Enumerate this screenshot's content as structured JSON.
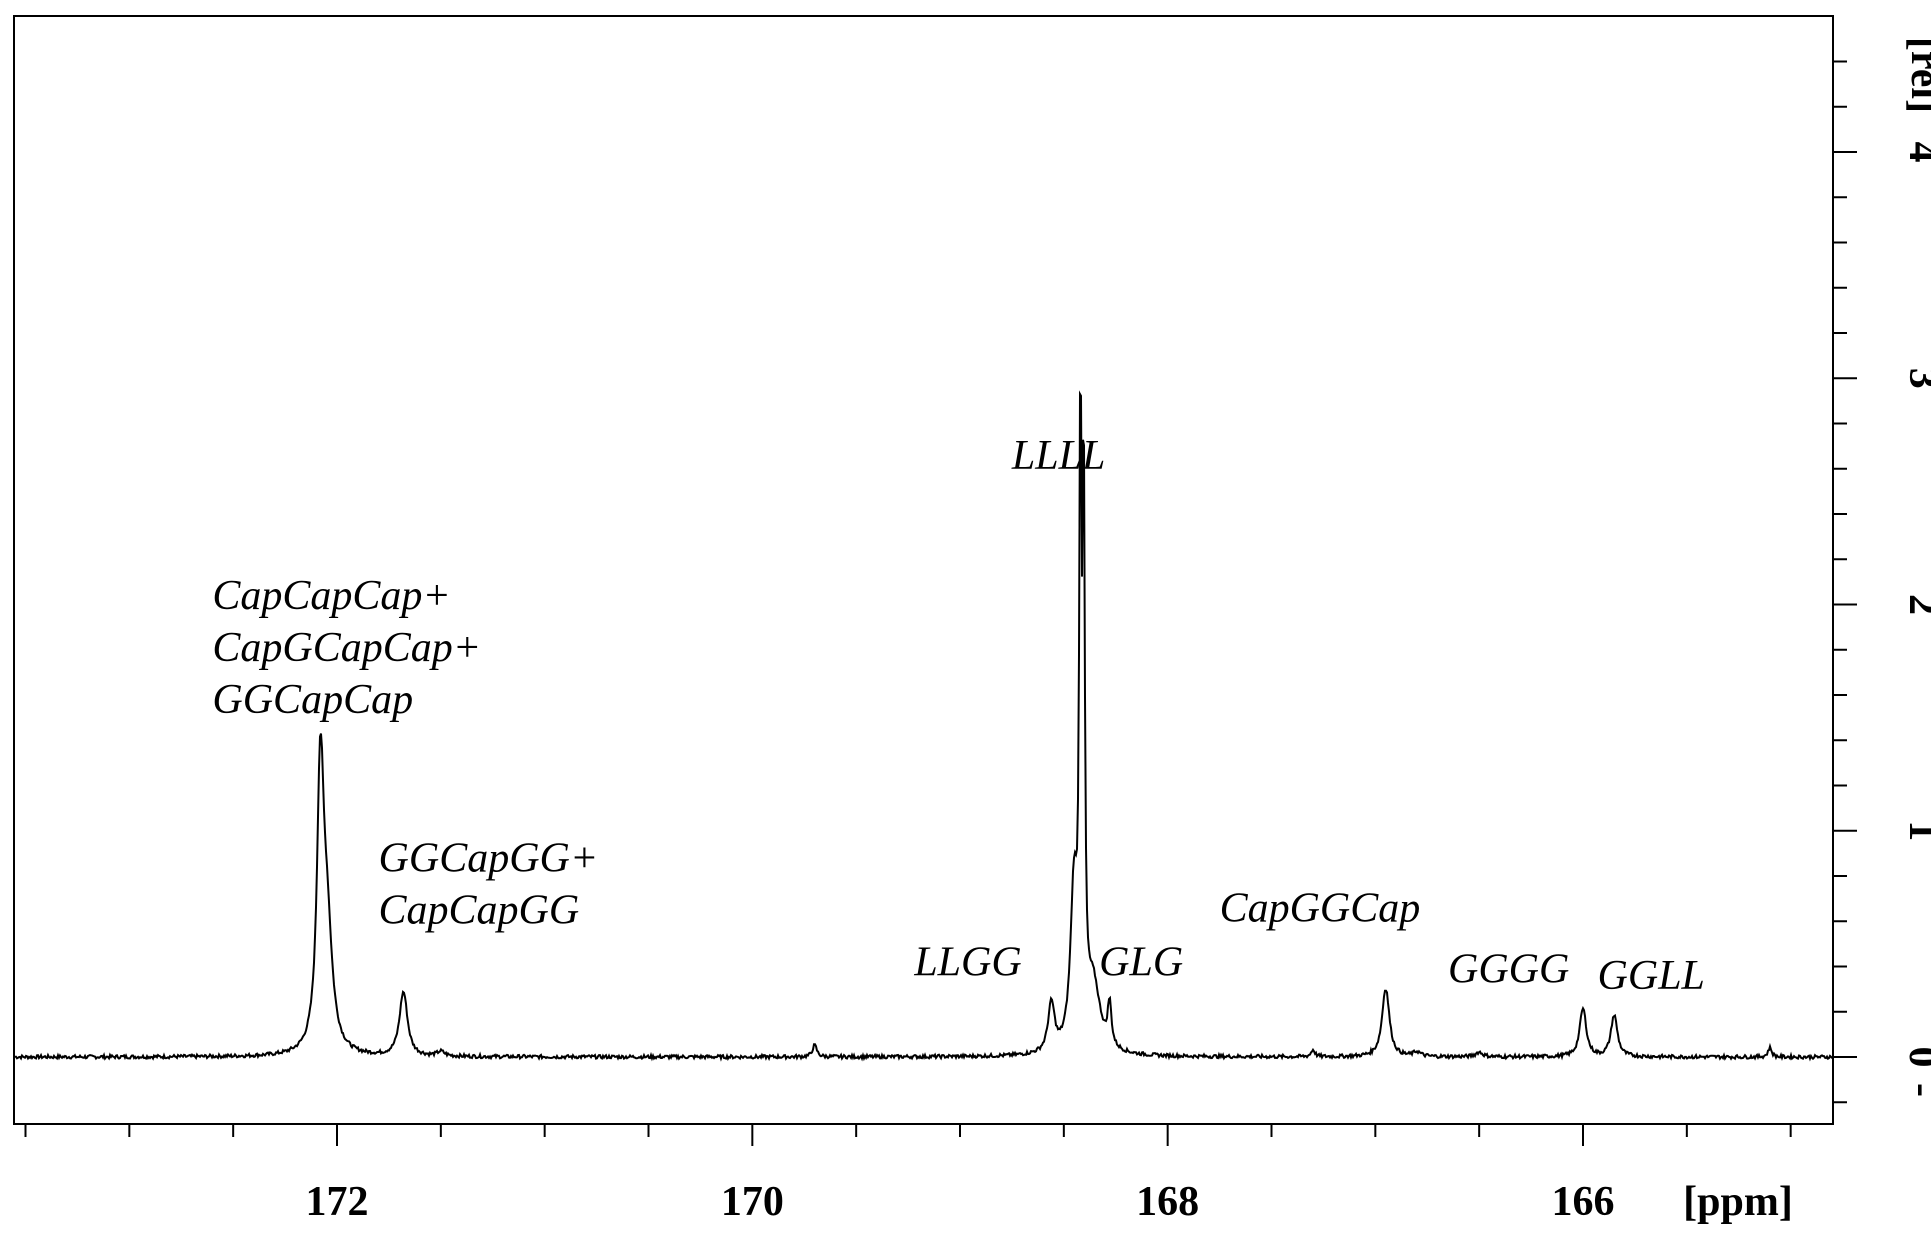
{
  "chart_data": {
    "type": "line",
    "title": "",
    "xlabel": "[ppm]",
    "ylabel": "[rel]",
    "xlim": [
      174.1,
      164.9
    ],
    "ylim": [
      -0.3,
      4.4
    ],
    "x_reversed": true,
    "y_axis_side": "right",
    "grid": false,
    "x_ticks": [
      {
        "value": 172,
        "label": "172"
      },
      {
        "value": 170,
        "label": "170"
      },
      {
        "value": 168,
        "label": "168"
      },
      {
        "value": 166,
        "label": "166"
      }
    ],
    "y_ticks": [
      {
        "value": 0,
        "label": "0"
      },
      {
        "value": 1,
        "label": "1"
      },
      {
        "value": 2,
        "label": "2"
      },
      {
        "value": 3,
        "label": "3"
      },
      {
        "value": 4,
        "label": "4"
      }
    ],
    "y_minus_label": "-",
    "series": [
      {
        "peaks": [
          {
            "center": 172.08,
            "height": 1.15,
            "width": 0.018
          },
          {
            "center": 172.05,
            "height": 0.55,
            "width": 0.03
          },
          {
            "center": 171.68,
            "height": 0.28,
            "width": 0.022
          },
          {
            "center": 171.5,
            "height": 0.02,
            "width": 0.02
          },
          {
            "center": 169.7,
            "height": 0.05,
            "width": 0.012
          },
          {
            "center": 168.56,
            "height": 0.21,
            "width": 0.018
          },
          {
            "center": 168.45,
            "height": 0.7,
            "width": 0.02
          },
          {
            "center": 168.42,
            "height": 2.4,
            "width": 0.006
          },
          {
            "center": 168.405,
            "height": 2.2,
            "width": 0.006
          },
          {
            "center": 168.36,
            "height": 0.3,
            "width": 0.04
          },
          {
            "center": 168.28,
            "height": 0.18,
            "width": 0.01
          },
          {
            "center": 167.3,
            "height": 0.03,
            "width": 0.01
          },
          {
            "center": 166.95,
            "height": 0.3,
            "width": 0.02
          },
          {
            "center": 166.8,
            "height": 0.02,
            "width": 0.02
          },
          {
            "center": 166.5,
            "height": 0.02,
            "width": 0.02
          },
          {
            "center": 166.0,
            "height": 0.21,
            "width": 0.018
          },
          {
            "center": 165.85,
            "height": 0.18,
            "width": 0.018
          },
          {
            "center": 165.1,
            "height": 0.04,
            "width": 0.01
          }
        ]
      }
    ],
    "annotations": [
      {
        "lines": [
          "CapCapCap+",
          "CapGCapCap+",
          "GGCapCap"
        ],
        "x": 172.6,
        "y": 1.98
      },
      {
        "lines": [
          "GGCapGG+",
          "CapCapGG"
        ],
        "x": 171.8,
        "y": 0.82
      },
      {
        "lines": [
          "LLLL"
        ],
        "x": 168.75,
        "y": 2.6
      },
      {
        "lines": [
          "LLGG"
        ],
        "x": 169.22,
        "y": 0.36
      },
      {
        "lines": [
          "GLG"
        ],
        "x": 168.33,
        "y": 0.36
      },
      {
        "lines": [
          "CapGGCap"
        ],
        "x": 167.75,
        "y": 0.6
      },
      {
        "lines": [
          "GGGG"
        ],
        "x": 166.65,
        "y": 0.33
      },
      {
        "lines": [
          "GGLL"
        ],
        "x": 165.93,
        "y": 0.3
      }
    ]
  }
}
